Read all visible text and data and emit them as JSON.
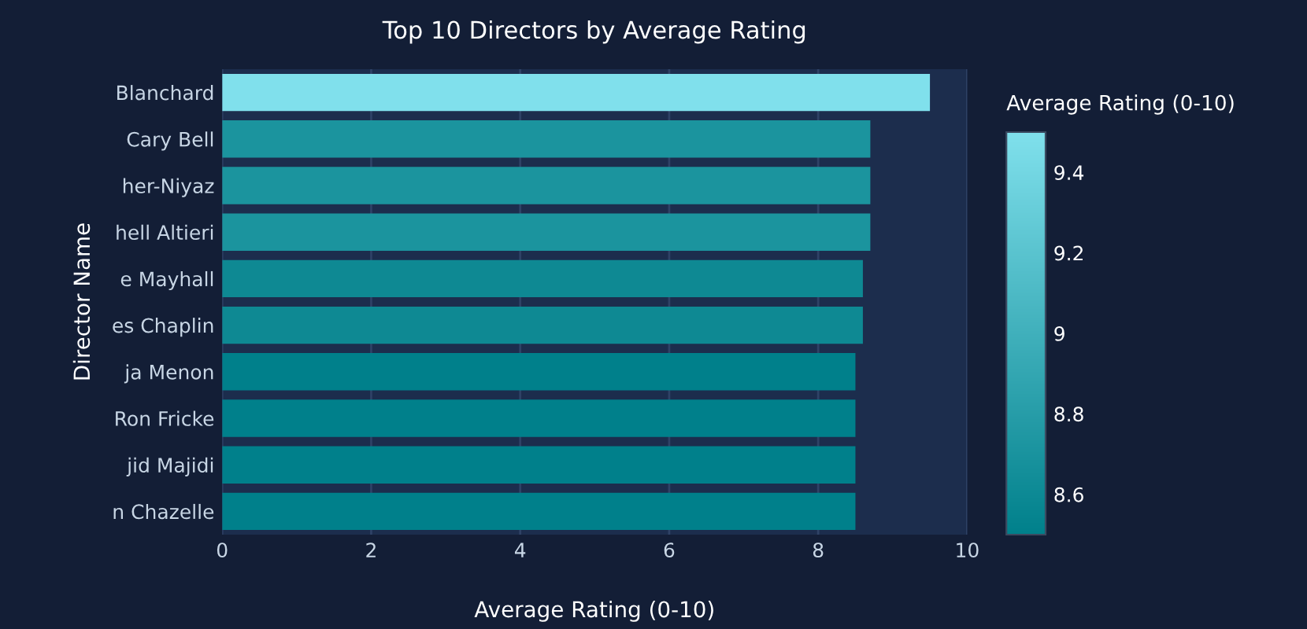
{
  "chart_data": {
    "type": "bar",
    "orientation": "horizontal",
    "title": "Top 10 Directors by Average Rating",
    "xlabel": "Average Rating (0-10)",
    "ylabel": "Director Name",
    "clabel": "Average Rating (0-10)",
    "categories": [
      "Blanchard",
      "Cary Bell",
      "her-Niyaz",
      "hell Altieri",
      "e Mayhall",
      "es Chaplin",
      "ja Menon",
      "Ron Fricke",
      "jid Majidi",
      "n Chazelle"
    ],
    "values": [
      9.5,
      8.7,
      8.7,
      8.7,
      8.6,
      8.6,
      8.5,
      8.5,
      8.5,
      8.5
    ],
    "colors": [
      "#80e0ec",
      "#1b949e",
      "#1b949e",
      "#1b949e",
      "#0e8993",
      "#0e8993",
      "#00808b",
      "#00808b",
      "#00808b",
      "#00808b"
    ],
    "xlim": [
      0,
      10
    ],
    "xticks": [
      0,
      2,
      4,
      6,
      8,
      10
    ],
    "clim": [
      8.5,
      9.5
    ],
    "cticks": [
      8.6,
      8.8,
      9,
      9.2,
      9.4
    ],
    "grid": "x"
  }
}
